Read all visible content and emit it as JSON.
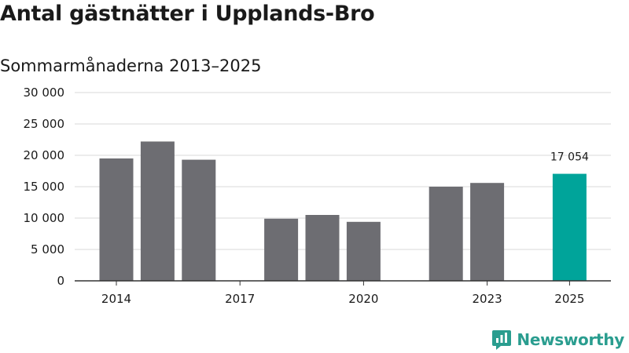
{
  "title": "Antal gästnätter i Upplands-Bro",
  "subtitle": "Sommarmånaderna 2013–2025",
  "brand": {
    "name": "Newsworthy",
    "icon": "newsworthy-logo-icon"
  },
  "colors": {
    "bar": "#6d6d72",
    "highlight": "#00a49a",
    "grid": "#d9d9d9",
    "axis": "#333333",
    "brand": "#2a9d8f"
  },
  "chart_data": {
    "type": "bar",
    "title": "Antal gästnätter i Upplands-Bro",
    "subtitle": "Sommarmånaderna 2013–2025",
    "xlabel": "",
    "ylabel": "",
    "x": [
      2014,
      2015,
      2016,
      2017,
      2018,
      2019,
      2020,
      2021,
      2022,
      2023,
      2024,
      2025
    ],
    "values": [
      19500,
      22200,
      19300,
      null,
      9900,
      10500,
      9400,
      null,
      15000,
      15600,
      null,
      17054
    ],
    "x_tick_labels": [
      "2014",
      "2017",
      "2020",
      "2023",
      "2025"
    ],
    "y_ticks": [
      0,
      5000,
      10000,
      15000,
      20000,
      25000,
      30000
    ],
    "y_tick_labels": [
      "0",
      "5 000",
      "10 000",
      "15 000",
      "20 000",
      "25 000",
      "30 000"
    ],
    "ylim": [
      0,
      30000
    ],
    "grid": true,
    "highlight_index": 11,
    "annotations": [
      {
        "x": 2025,
        "text": "17 054"
      }
    ]
  }
}
